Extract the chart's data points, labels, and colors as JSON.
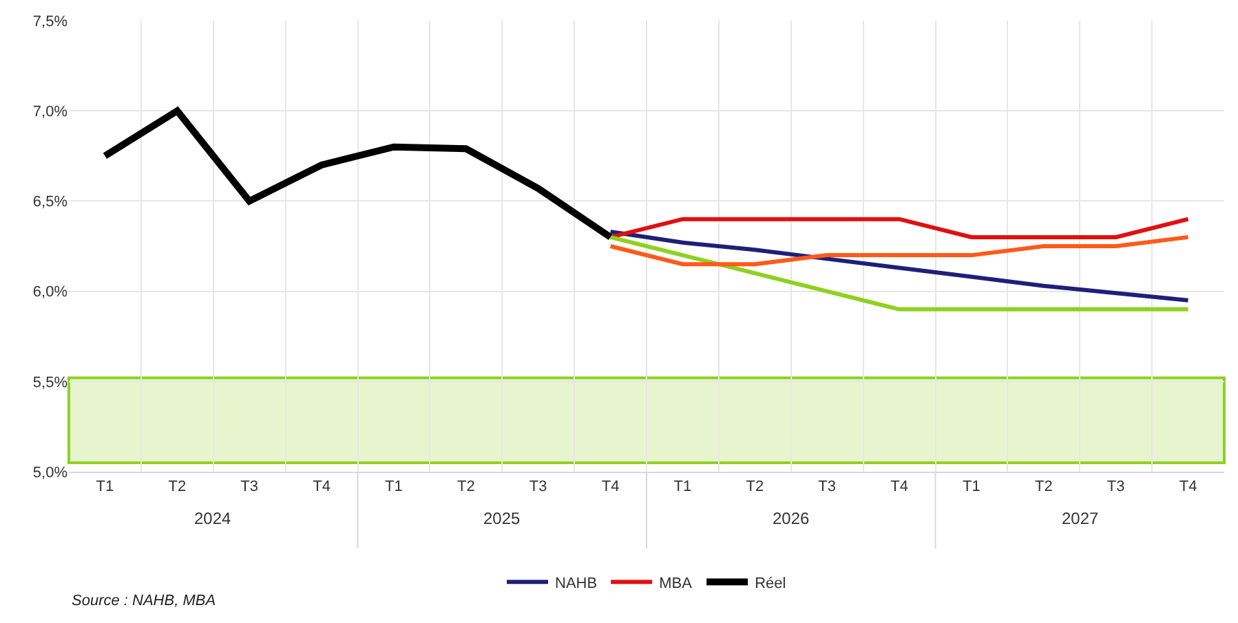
{
  "chart_data": {
    "type": "line",
    "categories": [
      "T1",
      "T2",
      "T3",
      "T4",
      "T1",
      "T2",
      "T3",
      "T4",
      "T1",
      "T2",
      "T3",
      "T4",
      "T1",
      "T2",
      "T3",
      "T4"
    ],
    "series": [
      {
        "name": "NAHB",
        "color": "#1f1f7a",
        "values": [
          null,
          null,
          null,
          null,
          null,
          null,
          null,
          6.33,
          6.27,
          6.23,
          6.18,
          6.13,
          6.08,
          6.03,
          5.99,
          5.95
        ]
      },
      {
        "name": "MBA",
        "color": "#e01010",
        "values": [
          null,
          null,
          null,
          null,
          null,
          null,
          null,
          6.3,
          6.4,
          6.4,
          6.4,
          6.4,
          6.3,
          6.3,
          6.3,
          6.4
        ]
      },
      {
        "color": "#8fd11f",
        "values": [
          null,
          null,
          null,
          null,
          null,
          null,
          null,
          6.3,
          6.2,
          6.1,
          6.0,
          5.9,
          5.9,
          5.9,
          5.9,
          5.9
        ]
      },
      {
        "color": "#ff5a1a",
        "values": [
          null,
          null,
          null,
          null,
          null,
          null,
          null,
          6.25,
          6.15,
          6.15,
          6.2,
          6.2,
          6.2,
          6.25,
          6.25,
          6.3
        ]
      },
      {
        "name": "Réel",
        "color": "#000000",
        "values": [
          6.75,
          7.0,
          6.5,
          6.7,
          6.8,
          6.79,
          6.57,
          6.3,
          null,
          null,
          null,
          null,
          null,
          null,
          null,
          null
        ]
      }
    ],
    "ylim": [
      5.0,
      7.5
    ],
    "yticks": [
      {
        "value": 5.0,
        "label": "5,0%"
      },
      {
        "value": 5.5,
        "label": "5,5%"
      },
      {
        "value": 6.0,
        "label": "6,0%"
      },
      {
        "value": 6.5,
        "label": "6,5%"
      },
      {
        "value": 7.0,
        "label": "7,0%"
      },
      {
        "value": 7.5,
        "label": "7,5%"
      }
    ],
    "bands": [
      {
        "axis": "y",
        "from": 5.05,
        "to": 5.52,
        "color": "#8fd11f"
      }
    ],
    "annotations": [
      "2024",
      "2025",
      "2026",
      "2027",
      "Source : NAHB, MBA"
    ],
    "grid": true,
    "legend": "bottom",
    "marker": "none",
    "line_style": "solid"
  }
}
